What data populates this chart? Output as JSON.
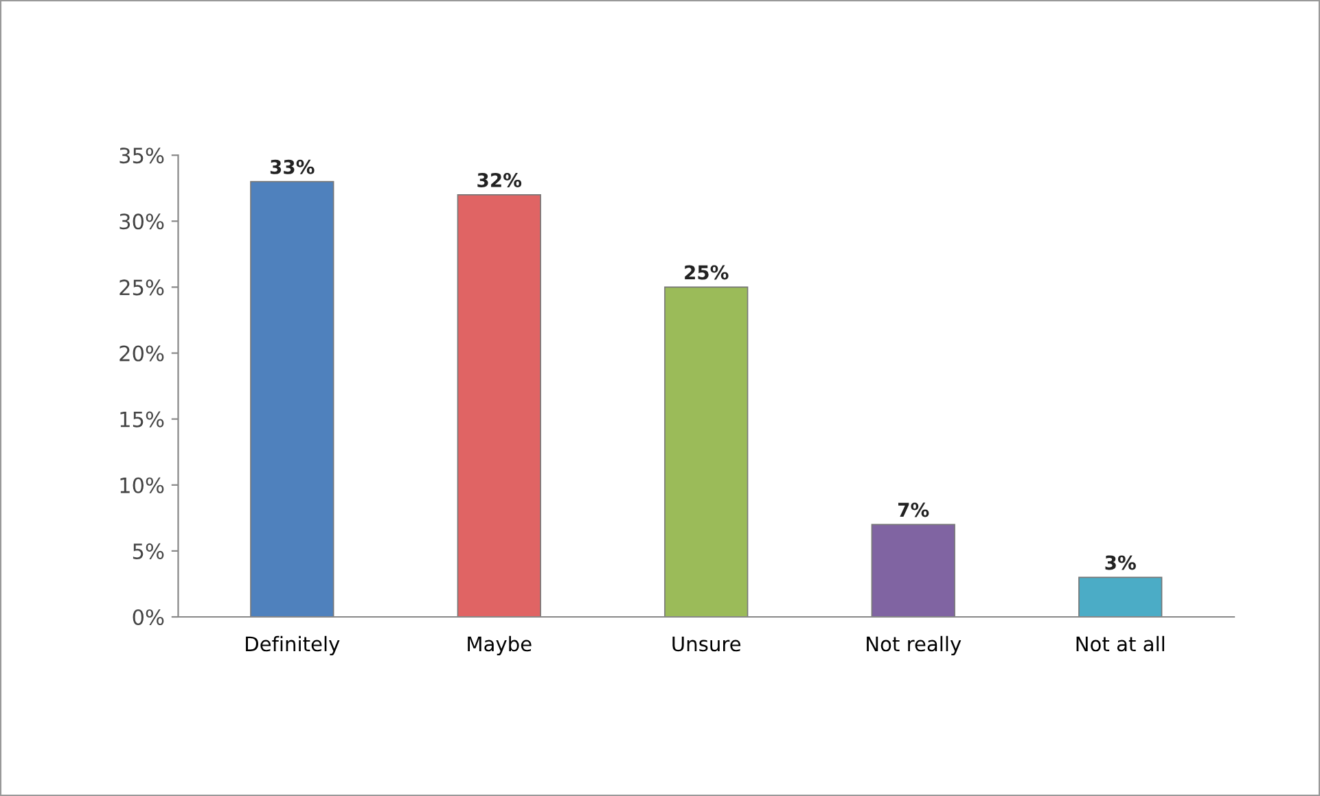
{
  "chart_data": {
    "type": "bar",
    "categories": [
      "Definitely",
      "Maybe",
      "Unsure",
      "Not really",
      "Not at all"
    ],
    "values": [
      33,
      32,
      25,
      7,
      3
    ],
    "colors": [
      "#4f81bd",
      "#e06464",
      "#9bbb59",
      "#8064a2",
      "#4bacc6"
    ],
    "value_labels": [
      "33%",
      "32%",
      "25%",
      "7%",
      "3%"
    ],
    "ylim": [
      0,
      35
    ],
    "yticks": [
      {
        "value": 0,
        "label": "0%"
      },
      {
        "value": 5,
        "label": "5%"
      },
      {
        "value": 10,
        "label": "10%"
      },
      {
        "value": 15,
        "label": "15%"
      },
      {
        "value": 20,
        "label": "20%"
      },
      {
        "value": 25,
        "label": "25%"
      },
      {
        "value": 30,
        "label": "30%"
      },
      {
        "value": 35,
        "label": "35%"
      }
    ],
    "grid": false,
    "legend": false
  }
}
